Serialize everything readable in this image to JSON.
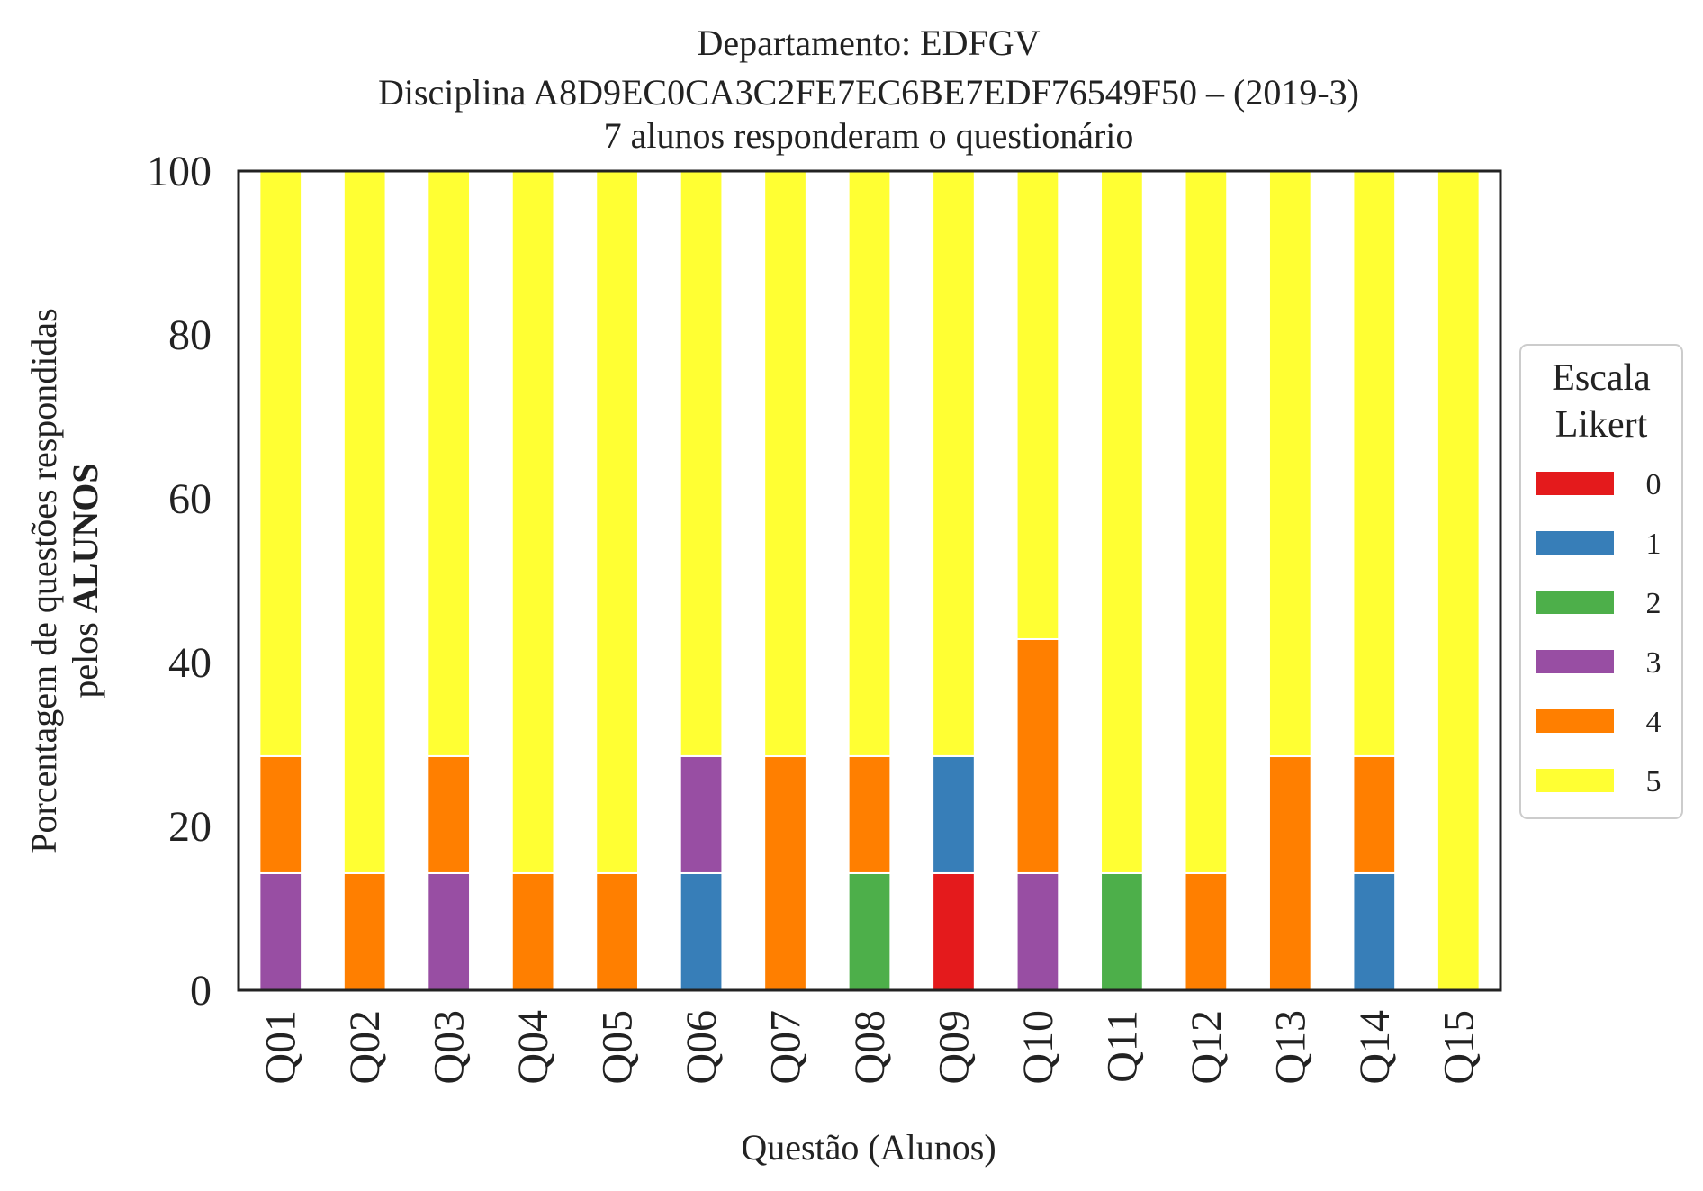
{
  "chart_data": {
    "type": "bar",
    "stacked": true,
    "title_lines": [
      "Departamento: EDFGV",
      "Disciplina A8D9EC0CA3C2FE7EC6BE7EDF76549F50 – (2019-3)",
      "7 alunos responderam o questionário"
    ],
    "xlabel": "Questão (Alunos)",
    "ylabel_line1": "Porcentagem de questões respondidas",
    "ylabel_line2_prefix": "pelos ",
    "ylabel_line2_bold": "ALUNOS",
    "ylim": [
      0,
      100
    ],
    "yticks": [
      0,
      20,
      40,
      60,
      80,
      100
    ],
    "grid": false,
    "legend": {
      "title_lines": [
        "Escala",
        "Likert"
      ],
      "position": "right"
    },
    "categories": [
      "Q01",
      "Q02",
      "Q03",
      "Q04",
      "Q05",
      "Q06",
      "Q07",
      "Q08",
      "Q09",
      "Q10",
      "Q11",
      "Q12",
      "Q13",
      "Q14",
      "Q15"
    ],
    "series": [
      {
        "name": "0",
        "color": "#e41a1c",
        "values": [
          0,
          0,
          0,
          0,
          0,
          0,
          0,
          0,
          14.29,
          0,
          0,
          0,
          0,
          0,
          0
        ]
      },
      {
        "name": "1",
        "color": "#377eb8",
        "values": [
          0,
          0,
          0,
          0,
          0,
          14.29,
          0,
          0,
          14.29,
          0,
          0,
          0,
          0,
          14.29,
          0
        ]
      },
      {
        "name": "2",
        "color": "#4daf4a",
        "values": [
          0,
          0,
          0,
          0,
          0,
          0,
          0,
          14.29,
          0,
          0,
          14.29,
          0,
          0,
          0,
          0
        ]
      },
      {
        "name": "3",
        "color": "#984ea3",
        "values": [
          14.29,
          0,
          14.29,
          0,
          0,
          14.29,
          0,
          0,
          0,
          14.29,
          0,
          0,
          0,
          0,
          0
        ]
      },
      {
        "name": "4",
        "color": "#ff7f00",
        "values": [
          14.29,
          14.29,
          14.29,
          14.29,
          14.29,
          0,
          28.57,
          14.29,
          0,
          28.57,
          0,
          14.29,
          28.57,
          14.29,
          0
        ]
      },
      {
        "name": "5",
        "color": "#ffff33",
        "values": [
          71.43,
          85.71,
          71.43,
          85.71,
          85.71,
          71.43,
          71.43,
          71.43,
          71.43,
          57.14,
          85.71,
          85.71,
          71.43,
          71.43,
          100
        ]
      }
    ]
  }
}
